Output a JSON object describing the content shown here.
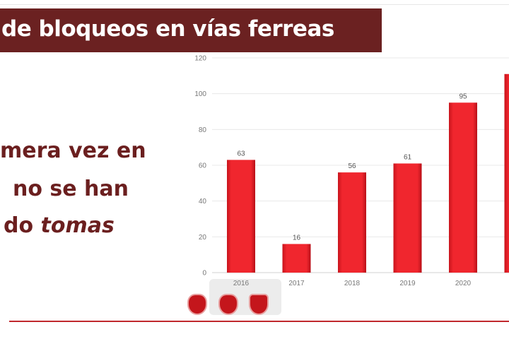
{
  "title": "de bloqueos en vías ferreas",
  "side_text": {
    "line1": "mera vez en",
    "line2": "no se han",
    "line3_plain": "do",
    "line3_italic": "tomas"
  },
  "logos": [
    "kansas-city-southern-logo",
    "kansas-city-southern-mexico-logo",
    "panama-canal-railway-logo"
  ],
  "colors": {
    "title_bg": "#6b2121",
    "bar": "#e8202a",
    "text": "#6b1f1f",
    "rule": "#c0282d"
  },
  "chart_data": {
    "type": "bar",
    "categories": [
      "2016",
      "2017",
      "2018",
      "2019",
      "2020",
      ""
    ],
    "values": [
      63,
      16,
      56,
      61,
      95,
      111
    ],
    "data_labels": [
      "63",
      "16",
      "56",
      "61",
      "95",
      ""
    ],
    "yticks": [
      "0",
      "20",
      "40",
      "60",
      "80",
      "100",
      "120"
    ],
    "ylim": [
      0,
      120
    ],
    "grid": true,
    "title": "",
    "xlabel": "",
    "ylabel": ""
  }
}
